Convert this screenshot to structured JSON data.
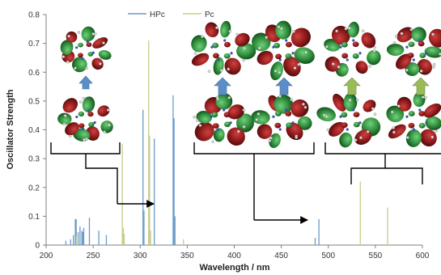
{
  "chart_data": {
    "type": "line",
    "title": "",
    "xlabel": "Wavelength / nm",
    "ylabel": "Oscillator Strength",
    "xlim": [
      200,
      600
    ],
    "ylim": [
      0,
      0.8
    ],
    "xticks": [
      "200",
      "250",
      "300",
      "350",
      "400",
      "450",
      "500",
      "550",
      "600"
    ],
    "yticks": [
      "0",
      "0.1",
      "0.2",
      "0.3",
      "0.4",
      "0.5",
      "0.6",
      "0.7",
      "0.8"
    ],
    "grid": false,
    "legend_position": "top-center",
    "series": [
      {
        "name": "HPc",
        "color": "#6b9bc9",
        "style": "stick",
        "x": [
          221,
          226,
          229,
          231,
          232,
          234,
          236,
          238,
          239,
          240,
          246,
          256,
          264,
          303,
          304,
          315,
          335,
          336,
          337,
          486,
          490
        ],
        "y": [
          0.015,
          0.02,
          0.035,
          0.09,
          0.09,
          0.045,
          0.065,
          0.05,
          0.045,
          0.06,
          0.095,
          0.05,
          0.035,
          0.47,
          0.12,
          0.37,
          0.52,
          0.44,
          0.1,
          0.025,
          0.09
        ]
      },
      {
        "name": "Pc",
        "color": "#c5cc8a",
        "style": "stick",
        "x": [
          232,
          281,
          282,
          283,
          309,
          310,
          311,
          346,
          534,
          563
        ],
        "y": [
          0.03,
          0.35,
          0.06,
          0.04,
          0.71,
          0.38,
          0.05,
          0.02,
          0.22,
          0.13
        ]
      }
    ],
    "annotations": {
      "description_omitted": true
    }
  },
  "colors": {
    "axis": "#7f7f7f",
    "orbital_red": "#8b1a1a",
    "orbital_green": "#2e8b3a",
    "arrow_blue": "#5b8ec9",
    "arrow_green": "#9bbb59",
    "bracket": "#000000"
  }
}
